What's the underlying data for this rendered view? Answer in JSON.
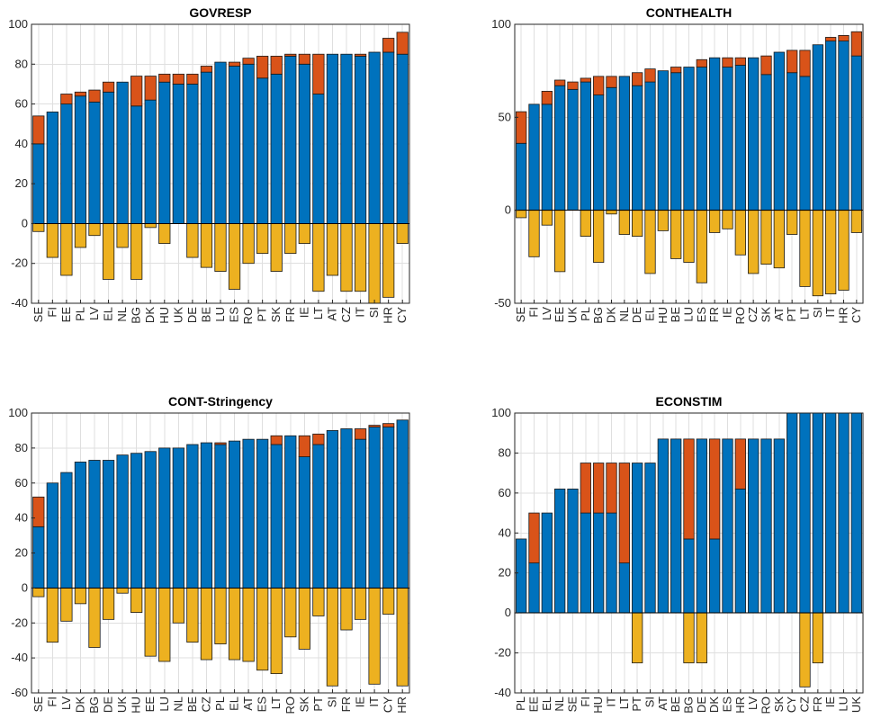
{
  "colors": {
    "negative": "#EDB120",
    "positive": "#0072BD",
    "extra": "#D95319"
  },
  "chart_data": [
    {
      "type": "bar",
      "stacked": true,
      "title": "GOVRESP",
      "ylim": [
        -40,
        100
      ],
      "yticks": [
        -40,
        -20,
        0,
        20,
        40,
        60,
        80,
        100
      ],
      "grid": true,
      "categories": [
        "SE",
        "FI",
        "EE",
        "PL",
        "LV",
        "EL",
        "NL",
        "BG",
        "DK",
        "HU",
        "UK",
        "DE",
        "BE",
        "LU",
        "ES",
        "RO",
        "PT",
        "SK",
        "FR",
        "IE",
        "LT",
        "AT",
        "CZ",
        "IT",
        "SI",
        "HR",
        "CY"
      ],
      "series": [
        {
          "color": "negative",
          "values": [
            -4,
            -17,
            -26,
            -12,
            -6,
            -28,
            -12,
            -28,
            -2,
            -10,
            0,
            -17,
            -22,
            -24,
            -33,
            -20,
            -15,
            -24,
            -15,
            -10,
            -34,
            -26,
            -34,
            -34,
            -40,
            -37,
            -10
          ]
        },
        {
          "color": "positive",
          "values": [
            40,
            56,
            60,
            64,
            61,
            66,
            71,
            59,
            62,
            71,
            70,
            70,
            76,
            81,
            79,
            80,
            73,
            75,
            84,
            80,
            65,
            85,
            85,
            84,
            86,
            86,
            85
          ]
        },
        {
          "color": "extra",
          "values": [
            14,
            0,
            5,
            2,
            6,
            5,
            0,
            15,
            12,
            4,
            5,
            5,
            3,
            0,
            2,
            3,
            11,
            9,
            1,
            5,
            20,
            0,
            0,
            1,
            0,
            7,
            11
          ]
        }
      ]
    },
    {
      "type": "bar",
      "stacked": true,
      "title": "CONTHEALTH",
      "ylim": [
        -50,
        100
      ],
      "yticks": [
        -50,
        0,
        50,
        100
      ],
      "grid": true,
      "categories": [
        "SE",
        "FI",
        "LV",
        "EE",
        "UK",
        "PL",
        "BG",
        "DK",
        "NL",
        "DE",
        "EL",
        "HU",
        "BE",
        "LU",
        "ES",
        "FR",
        "IE",
        "RO",
        "CZ",
        "SK",
        "AT",
        "PT",
        "LT",
        "SI",
        "IT",
        "HR",
        "CY"
      ],
      "series": [
        {
          "color": "negative",
          "values": [
            -4,
            -25,
            -8,
            -33,
            0,
            -14,
            -28,
            -2,
            -13,
            -14,
            -34,
            -11,
            -26,
            -28,
            -39,
            -12,
            -10,
            -24,
            -34,
            -29,
            -31,
            -13,
            -41,
            -46,
            -45,
            -43,
            -12
          ]
        },
        {
          "color": "positive",
          "values": [
            36,
            57,
            57,
            67,
            65,
            69,
            62,
            66,
            72,
            67,
            69,
            75,
            74,
            77,
            77,
            82,
            77,
            78,
            82,
            73,
            85,
            74,
            72,
            89,
            91,
            91,
            83
          ]
        },
        {
          "color": "extra",
          "values": [
            17,
            0,
            7,
            3,
            4,
            2,
            10,
            6,
            0,
            7,
            7,
            0,
            3,
            0,
            4,
            0,
            5,
            4,
            0,
            10,
            0,
            12,
            14,
            0,
            2,
            3,
            13
          ]
        }
      ]
    },
    {
      "type": "bar",
      "stacked": true,
      "title": "CONT-Stringency",
      "ylim": [
        -60,
        100
      ],
      "yticks": [
        -60,
        -40,
        -20,
        0,
        20,
        40,
        60,
        80,
        100
      ],
      "grid": true,
      "categories": [
        "SE",
        "FI",
        "LV",
        "DK",
        "BG",
        "DE",
        "UK",
        "HU",
        "EE",
        "LU",
        "NL",
        "BE",
        "CZ",
        "PL",
        "EL",
        "AT",
        "ES",
        "LT",
        "RO",
        "SK",
        "PT",
        "SI",
        "FR",
        "IE",
        "IT",
        "CY",
        "HR"
      ],
      "series": [
        {
          "color": "negative",
          "values": [
            -5,
            -31,
            -19,
            -9,
            -34,
            -18,
            -3,
            -14,
            -39,
            -42,
            -20,
            -31,
            -41,
            -32,
            -41,
            -42,
            -47,
            -49,
            -28,
            -35,
            -16,
            -56,
            -24,
            -18,
            -55,
            -15,
            -56
          ]
        },
        {
          "color": "positive",
          "values": [
            35,
            60,
            66,
            72,
            73,
            73,
            76,
            77,
            78,
            80,
            80,
            82,
            83,
            82,
            84,
            85,
            85,
            82,
            87,
            75,
            82,
            90,
            91,
            85,
            92,
            92,
            96
          ]
        },
        {
          "color": "extra",
          "values": [
            17,
            0,
            0,
            0,
            0,
            0,
            0,
            0,
            0,
            0,
            0,
            0,
            0,
            1,
            0,
            0,
            0,
            5,
            0,
            12,
            6,
            0,
            0,
            6,
            1,
            2,
            0
          ]
        }
      ]
    },
    {
      "type": "bar",
      "stacked": true,
      "title": "ECONSTIM",
      "ylim": [
        -40,
        100
      ],
      "yticks": [
        -40,
        -20,
        0,
        20,
        40,
        60,
        80,
        100
      ],
      "grid": true,
      "categories": [
        "PL",
        "EE",
        "EL",
        "NL",
        "SE",
        "FI",
        "HU",
        "IT",
        "LT",
        "PT",
        "SI",
        "AT",
        "BE",
        "BG",
        "DE",
        "DK",
        "ES",
        "HR",
        "LV",
        "RO",
        "SK",
        "CY",
        "CZ",
        "FR",
        "IE",
        "LU",
        "UK"
      ],
      "series": [
        {
          "color": "negative",
          "values": [
            0,
            0,
            0,
            0,
            0,
            0,
            0,
            0,
            0,
            -25,
            0,
            0,
            0,
            -25,
            -25,
            0,
            0,
            0,
            0,
            0,
            0,
            0,
            -37,
            -25,
            0,
            0,
            0
          ]
        },
        {
          "color": "positive",
          "values": [
            37,
            25,
            50,
            62,
            62,
            50,
            50,
            50,
            25,
            75,
            75,
            87,
            87,
            37,
            87,
            37,
            87,
            62,
            87,
            87,
            87,
            100,
            100,
            100,
            100,
            100,
            100
          ]
        },
        {
          "color": "extra",
          "values": [
            0,
            25,
            0,
            0,
            0,
            25,
            25,
            25,
            50,
            0,
            0,
            0,
            0,
            50,
            0,
            50,
            0,
            25,
            0,
            0,
            0,
            0,
            0,
            0,
            0,
            0,
            0
          ]
        }
      ]
    }
  ]
}
